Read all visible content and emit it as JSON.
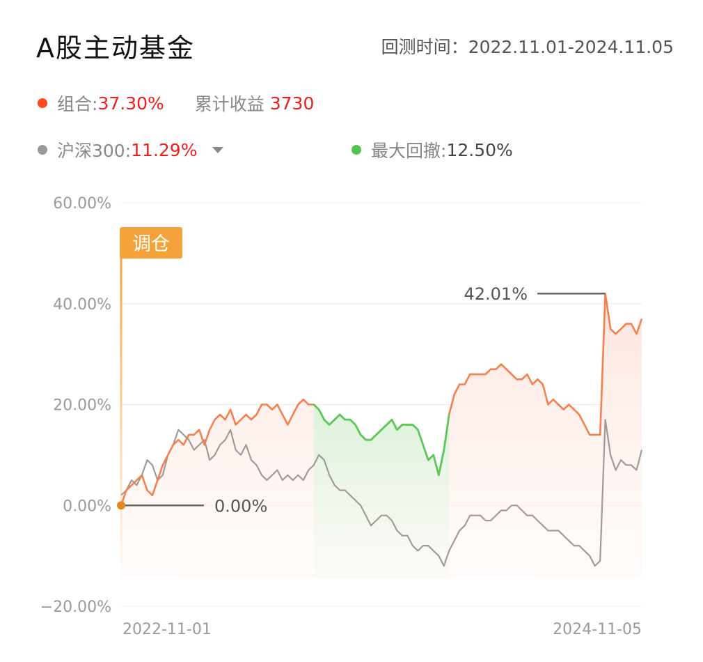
{
  "header": {
    "title": "A股主动基金",
    "period_label": "回测时间：",
    "period_value": "2022.11.01-2024.11.05"
  },
  "stats": {
    "portfolio_label": "组合:",
    "portfolio_value": "37.30%",
    "cum_label": "累计收益",
    "cum_value": "3730",
    "benchmark_label": "沪深300:",
    "benchmark_value": "11.29%",
    "drawdown_label": "最大回撤:",
    "drawdown_value": "12.50%"
  },
  "colors": {
    "portfolio": "#f5804f",
    "benchmark": "#a09a98",
    "drawdown": "#5ac85a",
    "rebalance": "#f5a23a",
    "portfolio_dot": "#ff4a1a",
    "benchmark_dot": "#999999",
    "drawdown_dot": "#52c252"
  },
  "chart_data": {
    "type": "line",
    "ylim": [
      -20,
      60
    ],
    "yticks": [
      60,
      40,
      20,
      0,
      -20
    ],
    "ytick_labels": [
      "60.00%",
      "40.00%",
      "20.00%",
      "0.00%",
      "−20.00%"
    ],
    "x_labels": [
      "2022-11-01",
      "2024-11-05"
    ],
    "t_range": [
      0,
      100
    ],
    "annotations": {
      "start_label": "0.00%",
      "peak_label": "42.01%",
      "peak_value": 42.01,
      "rebalance_tag": "调仓"
    },
    "drawdown_range": [
      37,
      63
    ],
    "series": [
      {
        "key": "portfolio",
        "t": [
          0,
          1,
          2,
          3,
          4,
          5,
          6,
          7,
          8,
          9,
          10,
          11,
          12,
          13,
          14,
          15,
          16,
          17,
          18,
          19,
          20,
          21,
          22,
          23,
          24,
          25,
          26,
          27,
          28,
          29,
          30,
          31,
          32,
          33,
          34,
          35,
          36,
          37,
          38,
          39,
          40,
          41,
          42,
          43,
          44,
          45,
          46,
          47,
          48,
          49,
          50,
          51,
          52,
          53,
          54,
          55,
          56,
          57,
          58,
          59,
          60,
          61,
          62,
          63,
          64,
          65,
          66,
          67,
          68,
          69,
          70,
          71,
          72,
          73,
          74,
          75,
          76,
          77,
          78,
          79,
          80,
          81,
          82,
          83,
          84,
          85,
          86,
          87,
          88,
          89,
          90,
          91,
          92,
          93,
          94,
          95,
          96,
          97,
          98,
          99,
          100
        ],
        "values": [
          0,
          3,
          4,
          5,
          6,
          3,
          2,
          5,
          8,
          10,
          12,
          13,
          12,
          14,
          14,
          15,
          12,
          15,
          17,
          18,
          17,
          19,
          16,
          17,
          18,
          17,
          18,
          20,
          20,
          19,
          20,
          18,
          16,
          18,
          20,
          21,
          20,
          20,
          19,
          17,
          16,
          17,
          18,
          17,
          17,
          16,
          14,
          13,
          13,
          14,
          15,
          16,
          17,
          15,
          16,
          16,
          16,
          15,
          12,
          9,
          10,
          6,
          11,
          18,
          22,
          24,
          24,
          26,
          26,
          26,
          26,
          27,
          27,
          28,
          27,
          26,
          25,
          25,
          26,
          24,
          25,
          24,
          20,
          21,
          20,
          19,
          20,
          19,
          18,
          16,
          14,
          14,
          14,
          42,
          35,
          34,
          35,
          36,
          36,
          34,
          37
        ]
      },
      {
        "key": "benchmark",
        "t": [
          0,
          1,
          2,
          3,
          4,
          5,
          6,
          7,
          8,
          9,
          10,
          11,
          12,
          13,
          14,
          15,
          16,
          17,
          18,
          19,
          20,
          21,
          22,
          23,
          24,
          25,
          26,
          27,
          28,
          29,
          30,
          31,
          32,
          33,
          34,
          35,
          36,
          37,
          38,
          39,
          40,
          41,
          42,
          43,
          44,
          45,
          46,
          47,
          48,
          49,
          50,
          51,
          52,
          53,
          54,
          55,
          56,
          57,
          58,
          59,
          60,
          61,
          62,
          63,
          64,
          65,
          66,
          67,
          68,
          69,
          70,
          71,
          72,
          73,
          74,
          75,
          76,
          77,
          78,
          79,
          80,
          81,
          82,
          83,
          84,
          85,
          86,
          87,
          88,
          89,
          90,
          91,
          92,
          93,
          94,
          95,
          96,
          97,
          98,
          99,
          100
        ],
        "values": [
          2,
          3,
          5,
          4,
          6,
          9,
          8,
          5,
          6,
          10,
          12,
          15,
          14,
          13,
          11,
          12,
          13,
          9,
          10,
          12,
          13,
          15,
          11,
          10,
          12,
          9,
          8,
          6,
          5,
          6,
          7,
          5,
          6,
          5,
          6,
          5,
          7,
          8,
          10,
          9,
          6,
          4,
          3,
          3,
          2,
          1,
          0,
          -2,
          -4,
          -3,
          -2,
          -2,
          -3,
          -5,
          -6,
          -6,
          -8,
          -9,
          -8,
          -8,
          -9,
          -10,
          -12,
          -9,
          -7,
          -5,
          -4,
          -2,
          -2,
          -2,
          -3,
          -3,
          -2,
          -1,
          -1,
          0,
          0,
          -1,
          -2,
          -2,
          -3,
          -4,
          -5,
          -5,
          -5,
          -6,
          -7,
          -8,
          -8,
          -9,
          -10,
          -12,
          -11,
          17,
          10,
          7,
          9,
          8,
          8,
          7,
          11
        ]
      }
    ]
  }
}
